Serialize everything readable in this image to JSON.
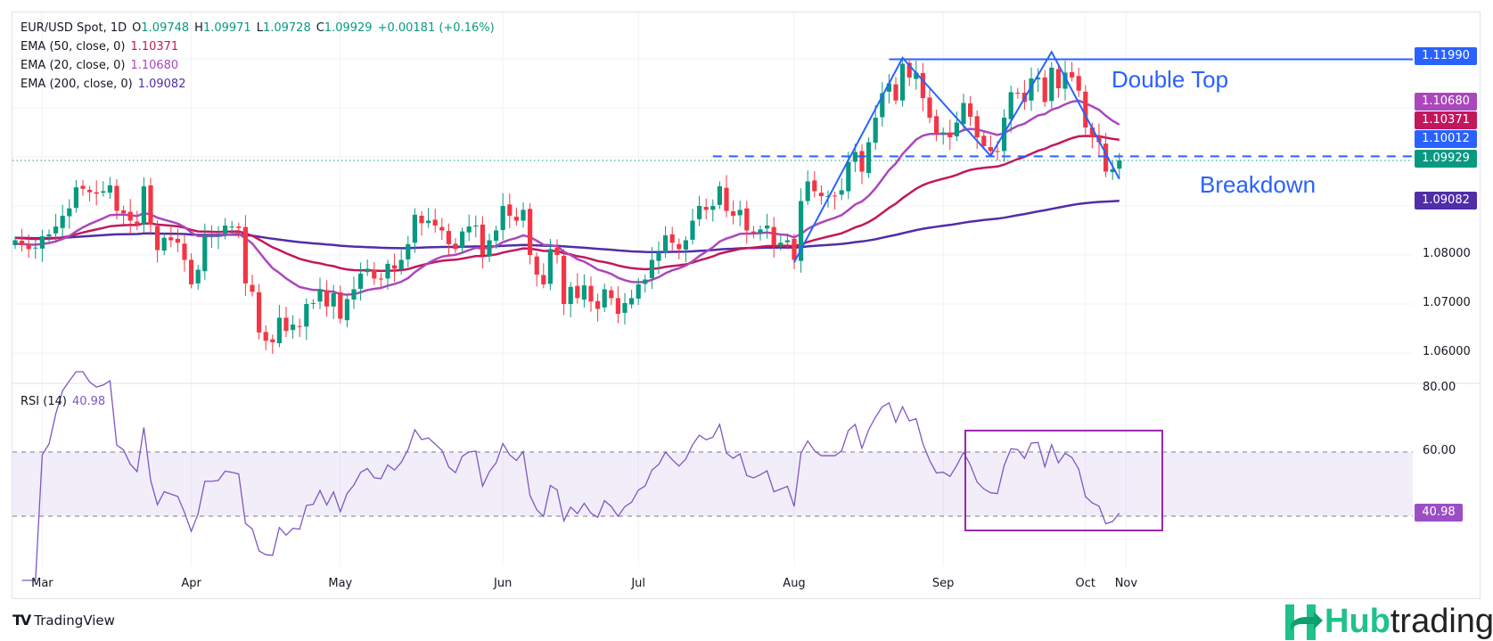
{
  "legend": {
    "symbol": "EUR/USD Spot, 1D",
    "open_label": "O",
    "open": "1.09748",
    "high_label": "H",
    "high": "1.09971",
    "low_label": "L",
    "low": "1.09728",
    "close_label": "C",
    "close": "1.09929",
    "change": "+0.00181 (+0.16%)",
    "ema50_label": "EMA (50, close, 0)",
    "ema50_value": "1.10371",
    "ema20_label": "EMA (20, close, 0)",
    "ema20_value": "1.10680",
    "ema200_label": "EMA (200, close, 0)",
    "ema200_value": "1.09082",
    "rsi_label": "RSI (14)",
    "rsi_value": "40.98"
  },
  "price_labels": {
    "resistance": "1.11990",
    "ema20": "1.10680",
    "ema50": "1.10371",
    "support": "1.10012",
    "last": "1.09929",
    "ema200": "1.09082"
  },
  "price_axis": [
    "1.08000",
    "1.07000",
    "1.06000"
  ],
  "rsi_axis": [
    "80.00",
    "60.00"
  ],
  "annotations": {
    "double_top": "Double Top",
    "breakdown": "Breakdown"
  },
  "branding": {
    "tradingview": "TradingView",
    "hub": "Hub",
    "trading": "trading"
  },
  "colors": {
    "up": "#089981",
    "down": "#f23645",
    "ema20": "#ab47bc",
    "ema50": "#c2185b",
    "ema200": "#512da8",
    "rsi": "#7e57c2",
    "drawing": "#2962ff"
  },
  "chart_data": {
    "type": "candlestick",
    "title": "EUR/USD Spot, 1D",
    "ylim": [
      1.055,
      1.125
    ],
    "rsi_ylim": [
      20,
      85
    ],
    "rsi_levels": [
      60,
      40
    ],
    "resistance": 1.1199,
    "support": 1.10012,
    "months": [
      {
        "label": "",
        "closes": [
          1.083,
          1.082,
          1.0812,
          1.0815
        ]
      },
      {
        "label": "Mar",
        "closes": [
          1.0838,
          1.0842,
          1.0858,
          1.088,
          1.0895,
          1.0938,
          1.0935,
          1.0928,
          1.0925,
          1.093,
          1.0942,
          1.089,
          1.0885,
          1.087,
          1.0862,
          1.094,
          1.0862,
          1.081,
          1.0835,
          1.083,
          1.0825,
          1.079
        ]
      },
      {
        "label": "Apr",
        "closes": [
          1.074,
          1.077,
          1.0838,
          1.0838,
          1.084,
          1.086,
          1.0858,
          1.0855,
          1.0742,
          1.0725,
          1.0642,
          1.0625,
          1.0622,
          1.0672,
          1.0645,
          1.0658,
          1.0655,
          1.07,
          1.0702,
          1.073,
          1.0695,
          1.0722
        ]
      },
      {
        "label": "May",
        "closes": [
          1.067,
          1.071,
          1.073,
          1.0762,
          1.0772,
          1.0752,
          1.075,
          1.0782,
          1.0772,
          1.079,
          1.0822,
          1.0882,
          1.0865,
          1.087,
          1.086,
          1.085,
          1.0822,
          1.0812,
          1.0848,
          1.0858,
          1.086,
          1.08,
          1.083,
          1.085
        ]
      },
      {
        "label": "Jun",
        "closes": [
          1.09,
          1.088,
          1.087,
          1.0892,
          1.08,
          1.076,
          1.074,
          1.0812,
          1.08,
          1.07,
          1.0735,
          1.0712,
          1.0738,
          1.0705,
          1.069,
          1.073,
          1.0712,
          1.068,
          1.0702,
          1.0712
        ]
      },
      {
        "label": "Jul",
        "closes": [
          1.074,
          1.075,
          1.079,
          1.0805,
          1.084,
          1.0825,
          1.0812,
          1.083,
          1.087,
          1.09,
          1.0892,
          1.09,
          1.094,
          1.089,
          1.088,
          1.0892,
          1.085,
          1.0845,
          1.0852,
          1.086,
          1.082,
          1.0825,
          1.083
        ]
      },
      {
        "label": "Aug",
        "closes": [
          1.079,
          1.091,
          1.095,
          1.093,
          1.092,
          1.092,
          1.092,
          1.0932,
          1.099,
          1.101,
          1.097,
          1.103,
          1.108,
          1.113,
          1.115,
          1.1115,
          1.119,
          1.1162,
          1.1172,
          1.112,
          1.108,
          1.1048
        ]
      },
      {
        "label": "Sep",
        "closes": [
          1.105,
          1.104,
          1.107,
          1.111,
          1.1082,
          1.104,
          1.1022,
          1.1012,
          1.101,
          1.108,
          1.1132,
          1.113,
          1.1112,
          1.116,
          1.1162,
          1.1112,
          1.1182,
          1.114,
          1.1172,
          1.1162,
          1.1135
        ]
      },
      {
        "label": "Oct",
        "closes": [
          1.106,
          1.104,
          1.103,
          1.097,
          1.0975,
          1.0993
        ]
      },
      {
        "label": "Nov",
        "closes": []
      }
    ],
    "double_top_path": [
      [
        115,
        1.0785
      ],
      [
        131,
        1.1202
      ],
      [
        144,
        1.1002
      ],
      [
        153,
        1.1214
      ],
      [
        163,
        1.0955
      ]
    ]
  }
}
